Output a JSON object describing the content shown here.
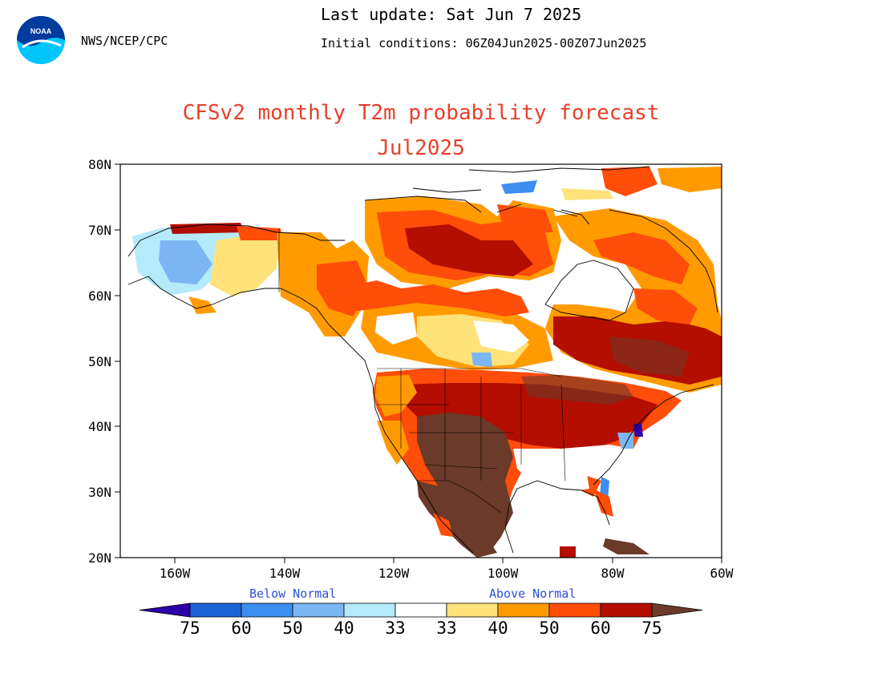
{
  "header": {
    "org": "NWS/NCEP/CPC",
    "last_update": "Last update: Sat Jun 7 2025",
    "initial_conditions": "Initial conditions: 06Z04Jun2025-00Z07Jun2025",
    "logo_text": "NOAA"
  },
  "title": {
    "line1": "CFSv2 monthly T2m probability forecast",
    "line2": "Jul2025"
  },
  "axes": {
    "y_ticks": [
      "80N",
      "70N",
      "60N",
      "50N",
      "40N",
      "30N",
      "20N"
    ],
    "x_ticks": [
      "160W",
      "140W",
      "120W",
      "100W",
      "80W",
      "60W"
    ],
    "lat_range": [
      20,
      80
    ],
    "lon_range": [
      -170,
      -60
    ]
  },
  "colorbar": {
    "below_label": "Below Normal",
    "above_label": "Above Normal",
    "labels": [
      "75",
      "60",
      "50",
      "40",
      "33",
      "33",
      "40",
      "50",
      "60",
      "75"
    ],
    "colors": [
      "#2c00a8",
      "#1b62d6",
      "#3c8ef0",
      "#7cb6f4",
      "#b5eafa",
      "#ffffff",
      "#ffe27a",
      "#ff9b00",
      "#ff4d0a",
      "#b30e00",
      "#6b3a2a"
    ]
  },
  "map_legend_categories": {
    "below": [
      "#b5eafa",
      "#7cb6f4",
      "#3c8ef0",
      "#1b62d6",
      "#2c00a8"
    ],
    "above": [
      "#ffe27a",
      "#ff9b00",
      "#ff4d0a",
      "#b30e00",
      "#6b3a2a"
    ]
  }
}
